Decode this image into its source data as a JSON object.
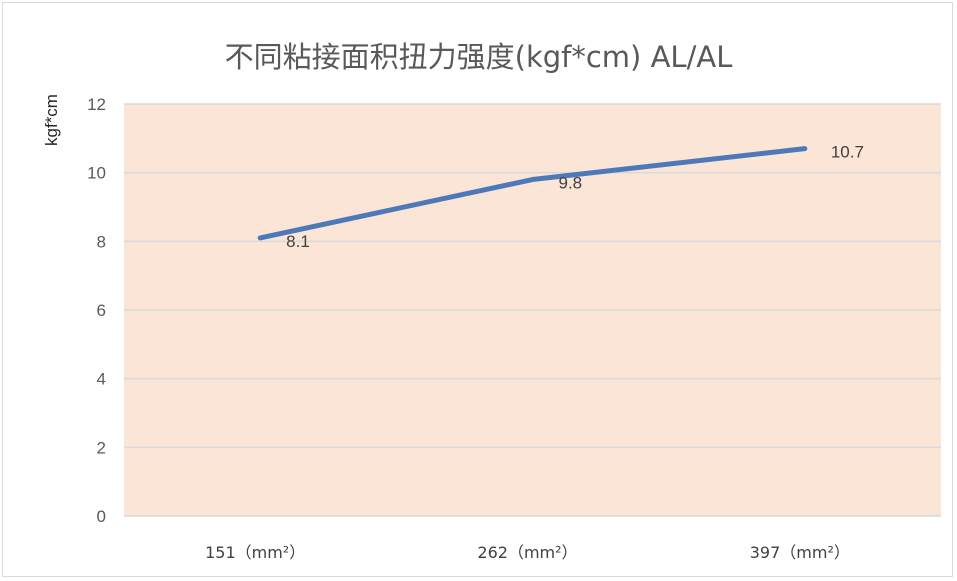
{
  "chart_data": {
    "type": "line",
    "title": "不同粘接面积扭力强度(kgf*cm)   AL/AL",
    "ylabel": "kgf*cm",
    "xlabel": "",
    "categories": [
      "151（mm²）",
      "262（mm²）",
      "397（mm²）"
    ],
    "series": [
      {
        "values": [
          8.1,
          9.8,
          10.7
        ],
        "data_labels": [
          "8.1",
          "9.8",
          "10.7"
        ]
      }
    ],
    "ylim": [
      0,
      12
    ],
    "yticks": [
      0,
      2,
      4,
      6,
      8,
      10,
      12
    ],
    "ytick_labels": [
      "0",
      "2",
      "4",
      "6",
      "8",
      "10",
      "12"
    ],
    "grid": true,
    "legend": "none",
    "colors": {
      "line": "#4e79b8",
      "plot_background": "#fbe5d6",
      "grid": "#d9d9d9"
    }
  }
}
